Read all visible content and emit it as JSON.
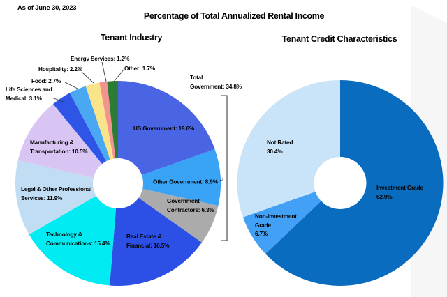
{
  "page": {
    "as_of": "As of June 30, 2023",
    "title": "Percentage of Total Annualized Rental Income",
    "background_edge_color": "#f6f6f7"
  },
  "chart_data": [
    {
      "type": "pie",
      "title": "Tenant Industry",
      "donut": true,
      "start_angle": "12 o'clock",
      "direction": "clockwise",
      "slices": [
        {
          "label": "US Government",
          "value": 19.6,
          "color": "#4a65e3"
        },
        {
          "label": "Other Government",
          "value": 8.9,
          "color": "#39a3f6",
          "footnote": "(1)"
        },
        {
          "label": "Government Contractors",
          "value": 6.3,
          "color": "#ababab"
        },
        {
          "label": "Real Estate & Financial",
          "value": 16.5,
          "color": "#2c50e6"
        },
        {
          "label": "Technology & Communications",
          "value": 15.4,
          "color": "#00ebf2"
        },
        {
          "label": "Legal & Other Professional Services",
          "value": 11.9,
          "color": "#c1ddf4"
        },
        {
          "label": "Manufacturing & Transportation",
          "value": 10.5,
          "color": "#d8c5f4"
        },
        {
          "label": "Life Sciences and Medical",
          "value": 3.1,
          "color": "#2e55e6"
        },
        {
          "label": "Food",
          "value": 2.7,
          "color": "#4aa7f2"
        },
        {
          "label": "Hospitality",
          "value": 2.2,
          "color": "#fae489"
        },
        {
          "label": "Energy Services",
          "value": 1.2,
          "color": "#f4928f"
        },
        {
          "label": "Other",
          "value": 1.7,
          "color": "#2b7d33"
        }
      ],
      "annotation": {
        "label": "Total Government",
        "value": 34.8,
        "includes": [
          "US Government",
          "Other Government",
          "Government Contractors"
        ]
      }
    },
    {
      "type": "pie",
      "title": "Tenant Credit Characteristics",
      "donut": true,
      "start_angle": "12 o'clock",
      "direction": "clockwise",
      "slices": [
        {
          "label": "Investment Grade",
          "value": 62.9,
          "color": "#0a6cbe"
        },
        {
          "label": "Non-Investment Grade",
          "value": 6.7,
          "color": "#42a0f6"
        },
        {
          "label": "Not Rated",
          "value": 30.4,
          "color": "#c9e4f9"
        }
      ]
    }
  ],
  "labels": {
    "left": {
      "us_gov": "US Government: 19.6%",
      "other_gov": "Other Government: 8.9%",
      "other_gov_footnote": "(1)",
      "gov_contractors": "Government\nContractors: 6.3%",
      "real_estate": "Real Estate &\nFinancial: 16.5%",
      "tech": "Technology &\nCommunications: 15.4%",
      "legal": "Legal & Other Professional\nServices: 11.9%",
      "manufacturing": "Manufacturing &\nTransportation: 10.5%",
      "life_sciences": "Life Sciences and\nMedical: 3.1%",
      "food": "Food: 2.7%",
      "hospitality": "Hospitality: 2.2%",
      "energy": "Energy Services: 1.2%",
      "other": "Other: 1.7%",
      "total_gov": "Total\nGovernment: 34.8%"
    },
    "right": {
      "investment": "Investment Grade\n62.9%",
      "non_investment": "Non-Investment\nGrade\n6.7%",
      "not_rated": "Not Rated\n30.4%"
    }
  }
}
